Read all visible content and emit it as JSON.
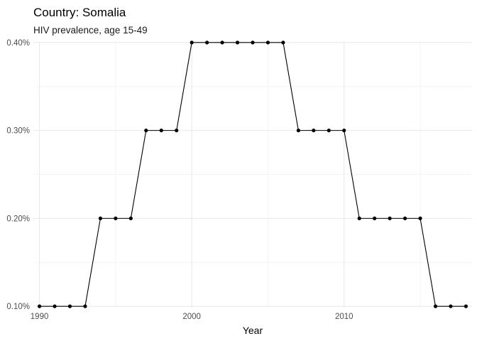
{
  "chart_data": {
    "type": "line",
    "title": "Country: Somalia",
    "subtitle": "HIV prevalence, age 15-49",
    "xlabel": "Year",
    "ylabel": "",
    "xlim": [
      1989.6,
      2018.4
    ],
    "ylim": [
      0.0985,
      0.4015
    ],
    "x_ticks": [
      1990,
      2000,
      2010
    ],
    "x_tick_labels": [
      "1990",
      "2000",
      "2010"
    ],
    "x_minor_ticks": [
      1995,
      2005,
      2015
    ],
    "y_ticks": [
      0.1,
      0.2,
      0.3,
      0.4
    ],
    "y_tick_labels": [
      "0.10%",
      "0.20%",
      "0.30%",
      "0.40%"
    ],
    "y_minor_ticks": [
      0.15,
      0.25,
      0.35
    ],
    "grid": true,
    "legend": "none",
    "line_color": "#000000",
    "series": [
      {
        "x": [
          1990,
          1991,
          1992,
          1993,
          1994,
          1995,
          1996,
          1997,
          1998,
          1999,
          2000,
          2001,
          2002,
          2003,
          2004,
          2005,
          2006,
          2007,
          2008,
          2009,
          2010,
          2011,
          2012,
          2013,
          2014,
          2015,
          2016,
          2017,
          2018
        ],
        "values": [
          0.1,
          0.1,
          0.1,
          0.1,
          0.2,
          0.2,
          0.2,
          0.3,
          0.3,
          0.3,
          0.4,
          0.4,
          0.4,
          0.4,
          0.4,
          0.4,
          0.4,
          0.3,
          0.3,
          0.3,
          0.3,
          0.2,
          0.2,
          0.2,
          0.2,
          0.2,
          0.1,
          0.1,
          0.1
        ]
      }
    ]
  }
}
